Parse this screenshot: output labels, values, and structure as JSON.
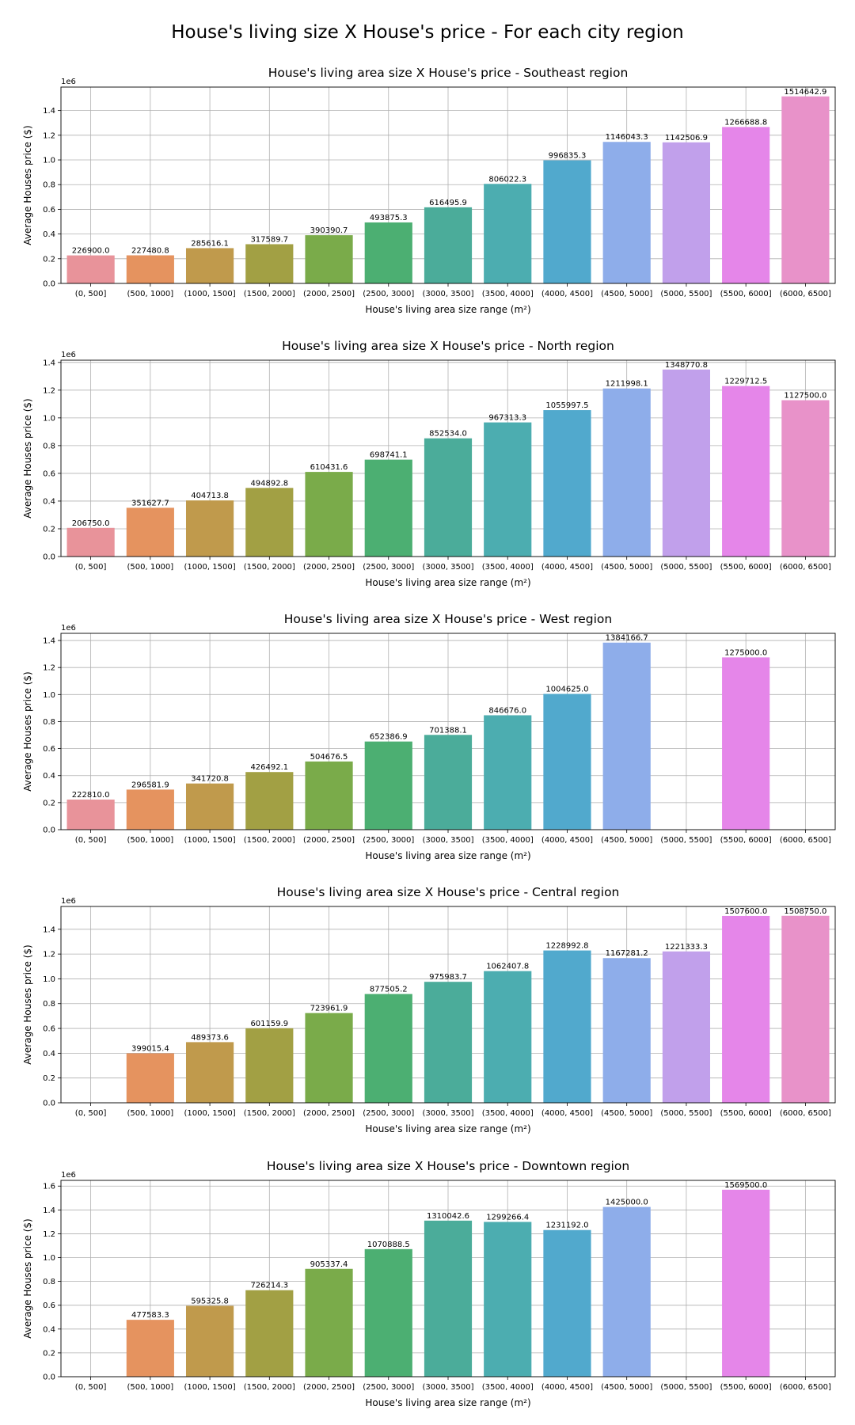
{
  "figure_title": "House's living size X House's price - For each city region",
  "colors": [
    "#e8939a",
    "#e5935f",
    "#c09a4c",
    "#a2a044",
    "#7aab4a",
    "#4caf72",
    "#4bac9a",
    "#4cadb0",
    "#51a9cd",
    "#8eadea",
    "#c1a0eb",
    "#e586e9",
    "#e892c9"
  ],
  "chart_data": [
    {
      "type": "bar",
      "title": "House's living area size X House's price - Southeast region",
      "xlabel": "House's living area size range (m²)",
      "ylabel": "Average Houses price ($)",
      "offset_label": "1e6",
      "yticks": [
        "0.0",
        "0.2",
        "0.4",
        "0.6",
        "0.8",
        "1.0",
        "1.2",
        "1.4"
      ],
      "ymax": 1.59,
      "grid": true,
      "categories": [
        "(0, 500]",
        "(500, 1000]",
        "(1000, 1500]",
        "(1500, 2000]",
        "(2000, 2500]",
        "(2500, 3000]",
        "(3000, 3500]",
        "(3500, 4000]",
        "(4000, 4500]",
        "(4500, 5000]",
        "(5000, 5500]",
        "(5500, 6000]",
        "(6000, 6500]"
      ],
      "values": [
        226900.0,
        227480.8,
        285616.1,
        317589.7,
        390390.7,
        493875.3,
        616495.9,
        806022.3,
        996835.3,
        1146043.3,
        1142506.9,
        1266688.8,
        1514642.9
      ],
      "labels": [
        "226900.0",
        "227480.8",
        "285616.1",
        "317589.7",
        "390390.7",
        "493875.3",
        "616495.9",
        "806022.3",
        "996835.3",
        "1146043.3",
        "1142506.9",
        "1266688.8",
        "1514642.9"
      ]
    },
    {
      "type": "bar",
      "title": "House's living area size X House's price - North region",
      "xlabel": "House's living area size range (m²)",
      "ylabel": "Average Houses price ($)",
      "offset_label": "1e6",
      "yticks": [
        "0.0",
        "0.2",
        "0.4",
        "0.6",
        "0.8",
        "1.0",
        "1.2",
        "1.4"
      ],
      "ymax": 1.416,
      "grid": true,
      "categories": [
        "(0, 500]",
        "(500, 1000]",
        "(1000, 1500]",
        "(1500, 2000]",
        "(2000, 2500]",
        "(2500, 3000]",
        "(3000, 3500]",
        "(3500, 4000]",
        "(4000, 4500]",
        "(4500, 5000]",
        "(5000, 5500]",
        "(5500, 6000]",
        "(6000, 6500]"
      ],
      "values": [
        206750.0,
        351627.7,
        404713.8,
        494892.8,
        610431.6,
        698741.1,
        852534.0,
        967313.3,
        1055997.5,
        1211998.1,
        1348770.8,
        1229712.5,
        1127500.0
      ],
      "labels": [
        "206750.0",
        "351627.7",
        "404713.8",
        "494892.8",
        "610431.6",
        "698741.1",
        "852534.0",
        "967313.3",
        "1055997.5",
        "1211998.1",
        "1348770.8",
        "1229712.5",
        "1127500.0"
      ]
    },
    {
      "type": "bar",
      "title": "House's living area size X House's price - West region",
      "xlabel": "House's living area size range (m²)",
      "ylabel": "Average Houses price ($)",
      "offset_label": "1e6",
      "yticks": [
        "0.0",
        "0.2",
        "0.4",
        "0.6",
        "0.8",
        "1.0",
        "1.2",
        "1.4"
      ],
      "ymax": 1.453,
      "grid": true,
      "categories": [
        "(0, 500]",
        "(500, 1000]",
        "(1000, 1500]",
        "(1500, 2000]",
        "(2000, 2500]",
        "(2500, 3000]",
        "(3000, 3500]",
        "(3500, 4000]",
        "(4000, 4500]",
        "(4500, 5000]",
        "(5000, 5500]",
        "(5500, 6000]",
        "(6000, 6500]"
      ],
      "values": [
        222810.0,
        296581.9,
        341720.8,
        426492.1,
        504676.5,
        652386.9,
        701388.1,
        846676.0,
        1004625.0,
        1384166.7,
        null,
        1275000.0,
        null
      ],
      "labels": [
        "222810.0",
        "296581.9",
        "341720.8",
        "426492.1",
        "504676.5",
        "652386.9",
        "701388.1",
        "846676.0",
        "1004625.0",
        "1384166.7",
        "",
        "1275000.0",
        ""
      ]
    },
    {
      "type": "bar",
      "title": "House's living area size X House's price - Central region",
      "xlabel": "House's living area size range (m²)",
      "ylabel": "Average Houses price ($)",
      "offset_label": "1e6",
      "yticks": [
        "0.0",
        "0.2",
        "0.4",
        "0.6",
        "0.8",
        "1.0",
        "1.2",
        "1.4"
      ],
      "ymax": 1.584,
      "grid": true,
      "categories": [
        "(0, 500]",
        "(500, 1000]",
        "(1000, 1500]",
        "(1500, 2000]",
        "(2000, 2500]",
        "(2500, 3000]",
        "(3000, 3500]",
        "(3500, 4000]",
        "(4000, 4500]",
        "(4500, 5000]",
        "(5000, 5500]",
        "(5500, 6000]",
        "(6000, 6500]"
      ],
      "values": [
        null,
        399015.4,
        489373.6,
        601159.9,
        723961.9,
        877505.2,
        975983.7,
        1062407.8,
        1228992.8,
        1167281.2,
        1221333.3,
        1507600.0,
        1508750.0
      ],
      "labels": [
        "",
        "399015.4",
        "489373.6",
        "601159.9",
        "723961.9",
        "877505.2",
        "975983.7",
        "1062407.8",
        "1228992.8",
        "1167281.2",
        "1221333.3",
        "1507600.0",
        "1508750.0"
      ]
    },
    {
      "type": "bar",
      "title": "House's living area size X House's price - Downtown region",
      "xlabel": "House's living area size range (m²)",
      "ylabel": "Average Houses price ($)",
      "offset_label": "1e6",
      "yticks": [
        "0.0",
        "0.2",
        "0.4",
        "0.6",
        "0.8",
        "1.0",
        "1.2",
        "1.4",
        "1.6"
      ],
      "ymax": 1.648,
      "grid": true,
      "categories": [
        "(0, 500]",
        "(500, 1000]",
        "(1000, 1500]",
        "(1500, 2000]",
        "(2000, 2500]",
        "(2500, 3000]",
        "(3000, 3500]",
        "(3500, 4000]",
        "(4000, 4500]",
        "(4500, 5000]",
        "(5000, 5500]",
        "(5500, 6000]",
        "(6000, 6500]"
      ],
      "values": [
        null,
        477583.3,
        595325.8,
        726214.3,
        905337.4,
        1070888.5,
        1310042.6,
        1299266.4,
        1231192.0,
        1425000.0,
        null,
        1569500.0,
        null
      ],
      "labels": [
        "",
        "477583.3",
        "595325.8",
        "726214.3",
        "905337.4",
        "1070888.5",
        "1310042.6",
        "1299266.4",
        "1231192.0",
        "1425000.0",
        "",
        "1569500.0",
        ""
      ]
    }
  ]
}
